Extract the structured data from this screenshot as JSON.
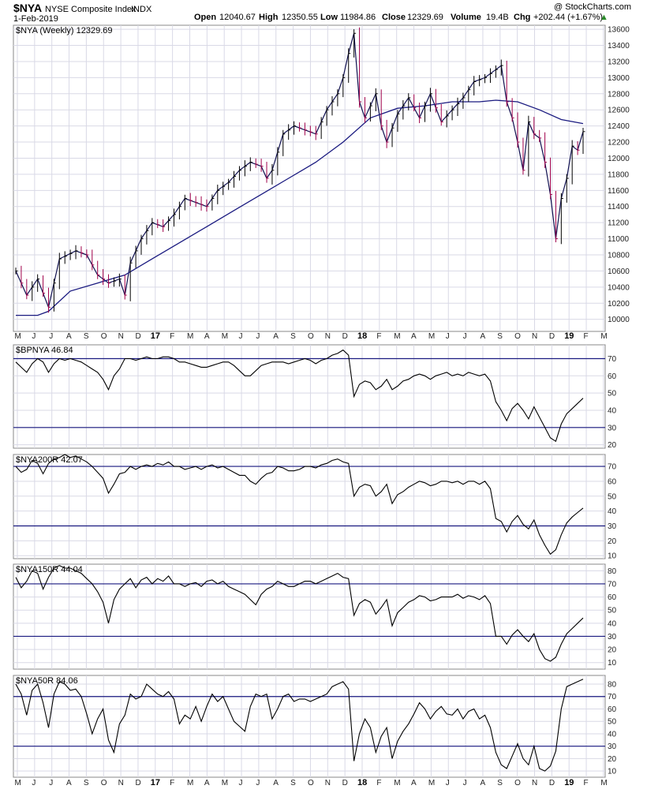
{
  "header": {
    "symbol": "$NYA",
    "name": "NYSE Composite Index",
    "exchange": "INDX",
    "date": "1-Feb-2019",
    "open_label": "Open",
    "open": "12040.67",
    "high_label": "High",
    "high": "12350.55",
    "low_label": "Low",
    "low": "11984.86",
    "close_label": "Close",
    "close": "12329.69",
    "volume_label": "Volume",
    "volume": "19.4B",
    "chg_label": "Chg",
    "chg": "+202.44 (+1.67%)",
    "copyright": "@ StockCharts.com",
    "arrow": "▲"
  },
  "colors": {
    "price": "#000000",
    "down_bar": "#a0004a",
    "ma": "#1a1a80",
    "grid": "#d9d9e6",
    "ref": "#1a1a80"
  },
  "x_axis": {
    "months": [
      "M",
      "J",
      "J",
      "A",
      "S",
      "O",
      "N",
      "D",
      "17",
      "F",
      "M",
      "A",
      "M",
      "J",
      "J",
      "A",
      "S",
      "O",
      "N",
      "D",
      "18",
      "F",
      "M",
      "A",
      "M",
      "J",
      "J",
      "A",
      "S",
      "O",
      "N",
      "D",
      "19",
      "F",
      "M"
    ],
    "year_labels": [
      "17",
      "18",
      "19"
    ]
  },
  "chart_data": [
    {
      "type": "line",
      "panel": "price",
      "legend": "$NYA (Weekly) 12329.69",
      "ylim": [
        9850,
        13650
      ],
      "y_ticks": [
        10000,
        10200,
        10400,
        10600,
        10800,
        11000,
        11200,
        11400,
        11600,
        11800,
        12000,
        12200,
        12400,
        12600,
        12800,
        13000,
        13200,
        13400,
        13600
      ],
      "series": [
        {
          "name": "$NYA",
          "points": [
            [
              0,
              10600
            ],
            [
              2,
              10300
            ],
            [
              4,
              10500
            ],
            [
              6,
              10150
            ],
            [
              8,
              10750
            ],
            [
              11,
              10850
            ],
            [
              13,
              10800
            ],
            [
              15,
              10550
            ],
            [
              17,
              10450
            ],
            [
              19,
              10500
            ],
            [
              20,
              10300
            ],
            [
              21,
              10700
            ],
            [
              23,
              11000
            ],
            [
              25,
              11200
            ],
            [
              27,
              11150
            ],
            [
              29,
              11300
            ],
            [
              31,
              11500
            ],
            [
              33,
              11450
            ],
            [
              35,
              11400
            ],
            [
              37,
              11600
            ],
            [
              39,
              11700
            ],
            [
              41,
              11850
            ],
            [
              43,
              11950
            ],
            [
              45,
              11900
            ],
            [
              46,
              11750
            ],
            [
              47,
              11850
            ],
            [
              49,
              12300
            ],
            [
              51,
              12400
            ],
            [
              53,
              12350
            ],
            [
              55,
              12300
            ],
            [
              57,
              12600
            ],
            [
              59,
              12800
            ],
            [
              60,
              13000
            ],
            [
              61,
              13300
            ],
            [
              62,
              13550
            ],
            [
              63,
              12700
            ],
            [
              64,
              12500
            ],
            [
              66,
              12800
            ],
            [
              67,
              12400
            ],
            [
              68,
              12200
            ],
            [
              70,
              12550
            ],
            [
              72,
              12750
            ],
            [
              74,
              12500
            ],
            [
              76,
              12800
            ],
            [
              78,
              12450
            ],
            [
              80,
              12600
            ],
            [
              82,
              12750
            ],
            [
              84,
              12950
            ],
            [
              86,
              13000
            ],
            [
              88,
              13100
            ],
            [
              89,
              13150
            ],
            [
              90,
              12700
            ],
            [
              91,
              12500
            ],
            [
              92,
              12200
            ],
            [
              93,
              11850
            ],
            [
              94,
              12450
            ],
            [
              95,
              12300
            ],
            [
              96,
              12250
            ],
            [
              97,
              11950
            ],
            [
              98,
              11550
            ],
            [
              99,
              11000
            ],
            [
              100,
              11500
            ],
            [
              101,
              11750
            ],
            [
              102,
              12150
            ],
            [
              103,
              12100
            ],
            [
              104,
              12330
            ]
          ]
        },
        {
          "name": "40-week MA",
          "points": [
            [
              0,
              10050
            ],
            [
              4,
              10050
            ],
            [
              6,
              10100
            ],
            [
              10,
              10350
            ],
            [
              15,
              10450
            ],
            [
              20,
              10550
            ],
            [
              25,
              10750
            ],
            [
              30,
              10950
            ],
            [
              35,
              11150
            ],
            [
              40,
              11350
            ],
            [
              45,
              11550
            ],
            [
              50,
              11750
            ],
            [
              55,
              11950
            ],
            [
              60,
              12200
            ],
            [
              65,
              12500
            ],
            [
              70,
              12620
            ],
            [
              75,
              12650
            ],
            [
              80,
              12700
            ],
            [
              85,
              12700
            ],
            [
              88,
              12720
            ],
            [
              92,
              12700
            ],
            [
              96,
              12600
            ],
            [
              100,
              12480
            ],
            [
              104,
              12430
            ]
          ]
        }
      ]
    },
    {
      "type": "line",
      "panel": "indicator",
      "legend": "$BPNYA 46.84",
      "ylim": [
        18,
        78
      ],
      "y_ticks": [
        20,
        30,
        40,
        50,
        60,
        70
      ],
      "ref_lines": [
        70,
        30
      ],
      "series": [
        {
          "name": "$BPNYA",
          "values": [
            68,
            65,
            62,
            67,
            70,
            68,
            62,
            67,
            70,
            69,
            70,
            69,
            68,
            66,
            64,
            62,
            58,
            52,
            60,
            64,
            70,
            70,
            69,
            70,
            71,
            70,
            70,
            71,
            71,
            70,
            68,
            68,
            67,
            66,
            65,
            65,
            66,
            67,
            68,
            68,
            66,
            63,
            60,
            60,
            63,
            66,
            67,
            68,
            68,
            68,
            67,
            68,
            69,
            70,
            69,
            67,
            69,
            70,
            72,
            73,
            75,
            72,
            48,
            55,
            57,
            56,
            52,
            54,
            58,
            52,
            54,
            57,
            58,
            60,
            61,
            60,
            58,
            60,
            61,
            62,
            60,
            61,
            60,
            62,
            61,
            60,
            61,
            57,
            45,
            40,
            34,
            41,
            44,
            40,
            35,
            42,
            36,
            30,
            24,
            22,
            32,
            38,
            41,
            44,
            47
          ]
        }
      ]
    },
    {
      "type": "line",
      "panel": "indicator",
      "legend": "$NYA200R 42.07",
      "ylim": [
        8,
        78
      ],
      "y_ticks": [
        10,
        20,
        30,
        40,
        50,
        60,
        70
      ],
      "ref_lines": [
        70,
        30
      ],
      "series": [
        {
          "name": "$NYA200R",
          "values": [
            70,
            66,
            68,
            74,
            72,
            65,
            72,
            75,
            76,
            78,
            76,
            77,
            75,
            73,
            70,
            66,
            62,
            52,
            58,
            65,
            66,
            70,
            68,
            70,
            71,
            70,
            72,
            71,
            73,
            70,
            70,
            68,
            69,
            70,
            68,
            70,
            71,
            69,
            70,
            68,
            66,
            64,
            64,
            60,
            58,
            62,
            65,
            66,
            70,
            69,
            67,
            67,
            68,
            70,
            70,
            69,
            71,
            72,
            74,
            75,
            73,
            72,
            50,
            56,
            58,
            57,
            50,
            53,
            58,
            45,
            51,
            53,
            56,
            58,
            60,
            59,
            57,
            58,
            60,
            60,
            59,
            60,
            58,
            60,
            60,
            58,
            60,
            55,
            35,
            33,
            26,
            33,
            37,
            31,
            28,
            34,
            24,
            17,
            11,
            14,
            24,
            32,
            36,
            39,
            42
          ]
        }
      ]
    },
    {
      "type": "line",
      "panel": "indicator",
      "legend": "$NYA150R 44.04",
      "ylim": [
        5,
        85
      ],
      "y_ticks": [
        10,
        20,
        30,
        40,
        50,
        60,
        70,
        80
      ],
      "ref_lines": [
        70,
        30
      ],
      "series": [
        {
          "name": "$NYA150R",
          "values": [
            75,
            67,
            72,
            80,
            78,
            66,
            75,
            82,
            84,
            82,
            82,
            80,
            78,
            74,
            70,
            64,
            56,
            40,
            58,
            66,
            70,
            74,
            67,
            73,
            75,
            70,
            74,
            72,
            76,
            70,
            70,
            68,
            70,
            71,
            68,
            72,
            73,
            70,
            72,
            68,
            66,
            64,
            62,
            58,
            54,
            62,
            66,
            68,
            72,
            70,
            68,
            68,
            70,
            72,
            72,
            70,
            72,
            74,
            76,
            78,
            75,
            74,
            46,
            55,
            58,
            56,
            47,
            52,
            58,
            38,
            48,
            52,
            56,
            58,
            61,
            60,
            57,
            58,
            60,
            60,
            60,
            62,
            59,
            61,
            60,
            58,
            61,
            55,
            30,
            30,
            24,
            31,
            35,
            30,
            26,
            32,
            20,
            13,
            11,
            14,
            24,
            32,
            36,
            40,
            44
          ]
        }
      ]
    },
    {
      "type": "line",
      "panel": "indicator",
      "legend": "$NYA50R 84.06",
      "ylim": [
        5,
        87
      ],
      "y_ticks": [
        10,
        20,
        30,
        40,
        50,
        60,
        70,
        80
      ],
      "ref_lines": [
        70,
        30
      ],
      "series": [
        {
          "name": "$NYA50R",
          "values": [
            80,
            72,
            55,
            75,
            80,
            65,
            45,
            72,
            82,
            80,
            75,
            76,
            70,
            56,
            40,
            52,
            60,
            35,
            25,
            48,
            55,
            72,
            68,
            70,
            80,
            76,
            72,
            70,
            74,
            68,
            48,
            55,
            52,
            62,
            50,
            62,
            72,
            66,
            70,
            60,
            50,
            46,
            42,
            62,
            72,
            70,
            72,
            52,
            60,
            70,
            72,
            66,
            68,
            68,
            66,
            68,
            70,
            72,
            78,
            80,
            82,
            76,
            18,
            40,
            52,
            45,
            25,
            38,
            45,
            20,
            34,
            42,
            48,
            56,
            65,
            60,
            52,
            58,
            62,
            56,
            55,
            60,
            52,
            58,
            60,
            52,
            55,
            45,
            25,
            15,
            12,
            22,
            32,
            20,
            15,
            30,
            12,
            10,
            14,
            26,
            60,
            78,
            80,
            82,
            84
          ]
        }
      ]
    }
  ]
}
